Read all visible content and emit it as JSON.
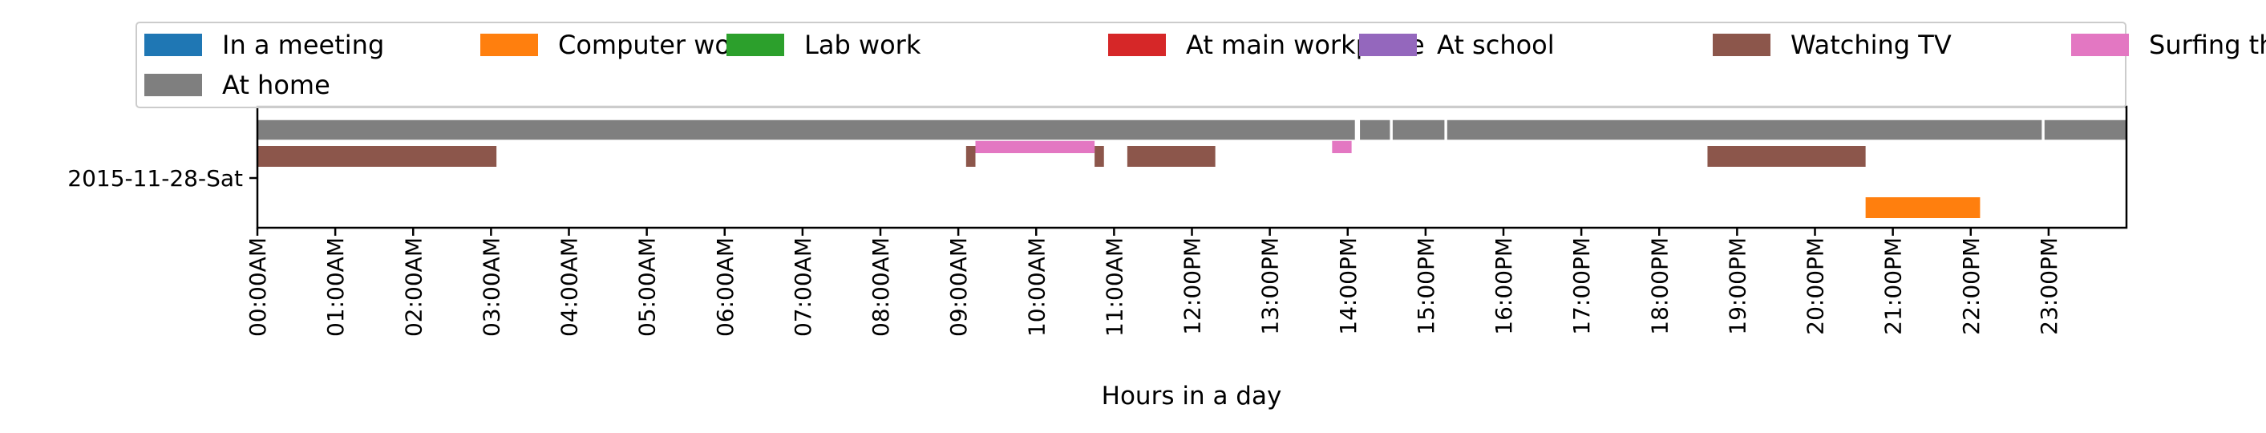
{
  "chart_data": {
    "type": "gantt",
    "xlabel": "Hours in a day",
    "xlim": [
      0,
      24
    ],
    "y_categories": [
      "2015-11-28-Sat"
    ],
    "x_tick_values": [
      0,
      1,
      2,
      3,
      4,
      5,
      6,
      7,
      8,
      9,
      10,
      11,
      12,
      13,
      14,
      15,
      16,
      17,
      18,
      19,
      20,
      21,
      22,
      23
    ],
    "x_tick_labels": [
      "00:00AM",
      "01:00AM",
      "02:00AM",
      "03:00AM",
      "04:00AM",
      "05:00AM",
      "06:00AM",
      "07:00AM",
      "08:00AM",
      "09:00AM",
      "10:00AM",
      "11:00AM",
      "12:00PM",
      "13:00PM",
      "14:00PM",
      "15:00PM",
      "16:00PM",
      "17:00PM",
      "18:00PM",
      "19:00PM",
      "20:00PM",
      "21:00PM",
      "22:00PM",
      "23:00PM"
    ],
    "legend_position": "top",
    "series": [
      {
        "name": "In a meeting",
        "color": "#1f77b4",
        "segments": []
      },
      {
        "name": "Computer work",
        "color": "#ff7f0e",
        "segments": [
          [
            20.65,
            22.12
          ]
        ]
      },
      {
        "name": "Lab work",
        "color": "#2ca02c",
        "segments": []
      },
      {
        "name": "At main workplace",
        "color": "#d62728",
        "segments": []
      },
      {
        "name": "At school",
        "color": "#9467bd",
        "segments": []
      },
      {
        "name": "Watching TV",
        "color": "#8c564b",
        "segments": [
          [
            0.0,
            3.07
          ],
          [
            9.1,
            9.22
          ],
          [
            10.75,
            10.87
          ],
          [
            11.17,
            12.3
          ],
          [
            18.62,
            20.65
          ]
        ]
      },
      {
        "name": "Surfing the internet",
        "color": "#e377c2",
        "segments": [
          [
            9.22,
            10.75
          ],
          [
            13.8,
            14.05
          ]
        ]
      },
      {
        "name": "At home",
        "color": "#7f7f7f",
        "segments": [
          [
            0.0,
            14.1
          ],
          [
            14.15,
            14.55
          ],
          [
            14.57,
            15.25
          ],
          [
            15.27,
            22.92
          ],
          [
            22.94,
            24.0
          ]
        ]
      }
    ]
  }
}
